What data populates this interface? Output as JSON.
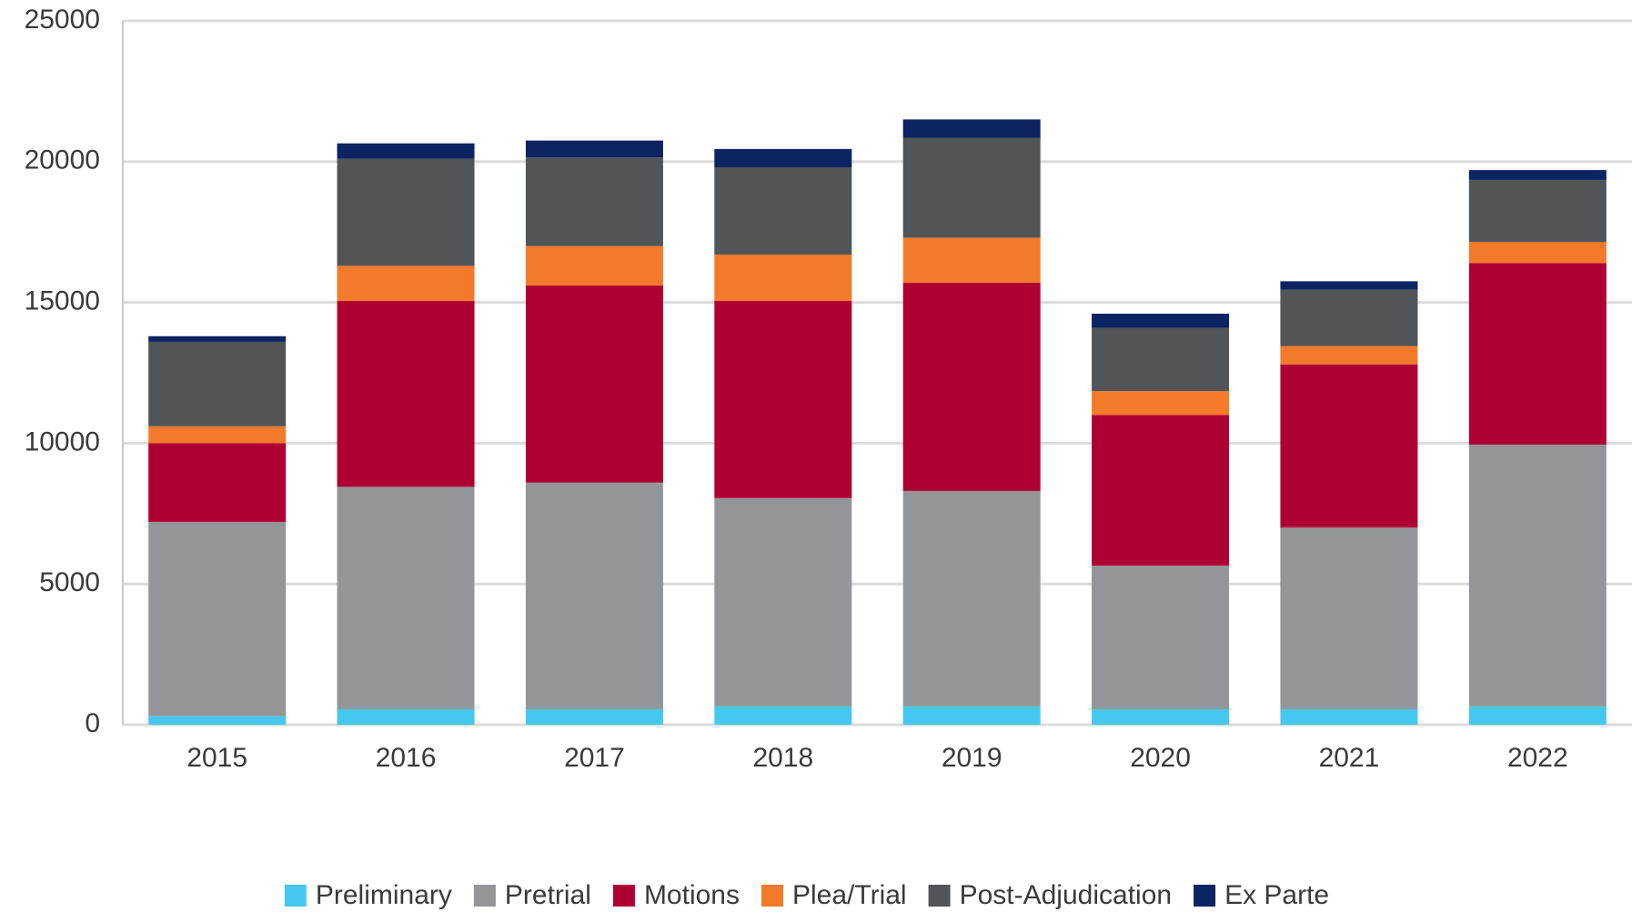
{
  "chart_data": {
    "type": "stacked_bar",
    "categories": [
      "2015",
      "2016",
      "2017",
      "2018",
      "2019",
      "2020",
      "2021",
      "2022"
    ],
    "series": [
      {
        "name": "Preliminary",
        "color": "#45c8f0",
        "values": [
          300,
          550,
          550,
          650,
          650,
          550,
          550,
          650
        ]
      },
      {
        "name": "Pretrial",
        "color": "#939598",
        "values": [
          6900,
          7900,
          8050,
          7400,
          7650,
          5100,
          6450,
          9300
        ]
      },
      {
        "name": "Motions",
        "color": "#ae0033",
        "values": [
          2800,
          6600,
          7000,
          7000,
          7400,
          5350,
          5800,
          6450
        ]
      },
      {
        "name": "Plea/Trial",
        "color": "#f47a2b",
        "values": [
          600,
          1250,
          1400,
          1650,
          1600,
          850,
          650,
          750
        ]
      },
      {
        "name": "Post-Adjudication",
        "color": "#515558",
        "values": [
          3000,
          3800,
          3150,
          3100,
          3550,
          2250,
          2000,
          2200
        ]
      },
      {
        "name": "Ex Parte",
        "color": "#0c2461",
        "values": [
          200,
          550,
          600,
          650,
          650,
          500,
          300,
          350
        ]
      }
    ],
    "ylim": [
      0,
      25000
    ],
    "yticks": [
      0,
      5000,
      10000,
      15000,
      20000,
      25000
    ],
    "grid": true,
    "legend": "bottom"
  }
}
